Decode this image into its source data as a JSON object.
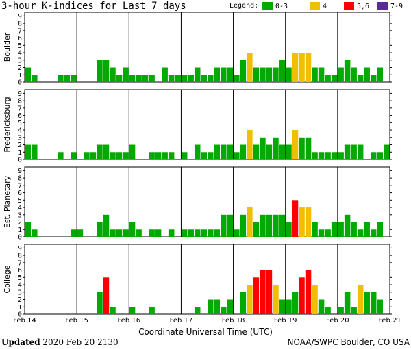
{
  "title": "3-hour K-indices for Last 7 days",
  "legend": {
    "label": "Legend:",
    "items": [
      {
        "label": "0-3",
        "color": "#00aa00"
      },
      {
        "label": "4",
        "color": "#f0c000"
      },
      {
        "label": "5,6",
        "color": "#ff0000"
      },
      {
        "label": "7-9",
        "color": "#5a2a9a"
      }
    ]
  },
  "footer": {
    "updated_label": "Updated",
    "updated_value": "2020 Feb 20 2130",
    "credit": "NOAA/SWPC Boulder, CO USA"
  },
  "chart_data": {
    "type": "bar",
    "title": "3-hour K-indices for Last 7 days",
    "xlabel": "Coordinate Universal Time (UTC)",
    "x_ticks": [
      "Feb 14",
      "Feb 15",
      "Feb 16",
      "Feb 17",
      "Feb 18",
      "Feb 19",
      "Feb 20",
      "Feb 21"
    ],
    "y_ticks": [
      "0",
      "1",
      "2",
      "3",
      "4",
      "5",
      "6",
      "7",
      "8",
      "9"
    ],
    "ylim": [
      0,
      9
    ],
    "grid": false,
    "legend_position": "top-right",
    "intervals_per_day": 8,
    "panels": [
      {
        "name": "Boulder",
        "values": [
          2,
          1,
          0,
          0,
          0,
          1,
          1,
          1,
          0,
          0,
          0,
          3,
          3,
          2,
          1,
          2,
          1,
          1,
          1,
          1,
          0,
          2,
          1,
          1,
          1,
          1,
          2,
          1,
          1,
          2,
          2,
          2,
          1,
          3,
          4,
          2,
          2,
          2,
          2,
          3,
          2,
          4,
          4,
          4,
          2,
          2,
          1,
          1,
          2,
          3,
          2,
          1,
          2,
          1,
          2,
          0
        ]
      },
      {
        "name": "Fredericksburg",
        "values": [
          2,
          2,
          0,
          0,
          0,
          1,
          0,
          1,
          0,
          1,
          1,
          2,
          2,
          1,
          1,
          1,
          2,
          0,
          0,
          1,
          1,
          1,
          1,
          0,
          1,
          0,
          2,
          1,
          1,
          2,
          2,
          2,
          1,
          2,
          4,
          2,
          3,
          2,
          3,
          2,
          2,
          4,
          3,
          3,
          1,
          1,
          1,
          1,
          1,
          2,
          2,
          2,
          0,
          1,
          1,
          2,
          0
        ]
      },
      {
        "name": "Est. Planetary",
        "values": [
          2,
          1,
          0,
          0,
          0,
          0,
          0,
          1,
          1,
          0,
          0,
          2,
          3,
          1,
          1,
          1,
          2,
          1,
          0,
          1,
          1,
          0,
          1,
          0,
          1,
          1,
          1,
          1,
          1,
          1,
          3,
          3,
          1,
          3,
          4,
          2,
          3,
          3,
          3,
          3,
          2,
          5,
          4,
          4,
          2,
          1,
          1,
          2,
          2,
          3,
          2,
          1,
          2,
          1,
          2,
          0
        ]
      },
      {
        "name": "College",
        "values": [
          0,
          0,
          0,
          0,
          0,
          0,
          0,
          0,
          0,
          0,
          0,
          3,
          5,
          1,
          0,
          0,
          1,
          0,
          0,
          1,
          0,
          0,
          0,
          0,
          0,
          0,
          1,
          0,
          2,
          2,
          1,
          2,
          0,
          3,
          4,
          5,
          6,
          6,
          4,
          2,
          2,
          3,
          5,
          6,
          4,
          2,
          1,
          0,
          1,
          3,
          1,
          4,
          3,
          3,
          2,
          0
        ]
      }
    ]
  }
}
